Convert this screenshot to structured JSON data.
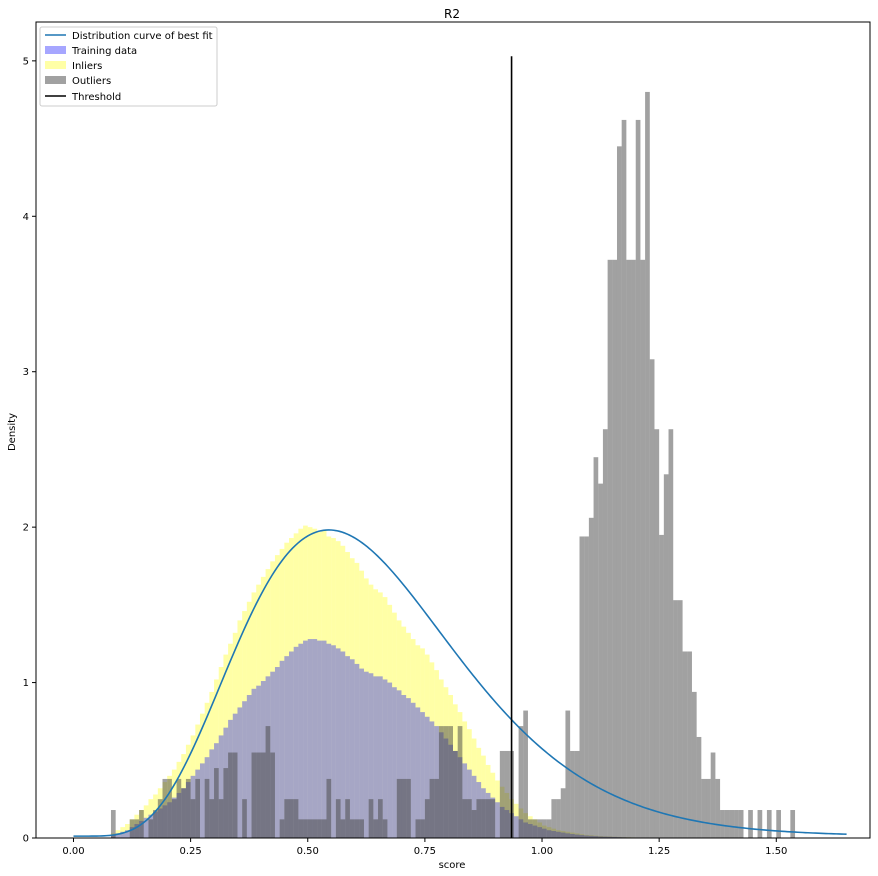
{
  "chart_data": {
    "type": "histogram",
    "title": "R2",
    "xlabel": "score",
    "ylabel": "Density",
    "xlim": [
      -0.08,
      1.7
    ],
    "ylim": [
      0,
      5.25
    ],
    "xticks": [
      0.0,
      0.25,
      0.5,
      0.75,
      1.0,
      1.25,
      1.5
    ],
    "xtick_labels": [
      "0.00",
      "0.25",
      "0.50",
      "0.75",
      "1.00",
      "1.25",
      "1.50"
    ],
    "yticks": [
      0,
      1,
      2,
      3,
      4,
      5
    ],
    "ytick_labels": [
      "0",
      "1",
      "2",
      "3",
      "4",
      "5"
    ],
    "grid": false,
    "legend_position": "top-left",
    "legend": [
      "Distribution curve of best fit",
      "Training data",
      "Inliers",
      "Outliers",
      "Threshold"
    ],
    "colors": {
      "curve": "#1f77b4",
      "training": "#0000ff",
      "inliers": "#ffff00",
      "outliers": "#444444",
      "threshold": "#000000"
    },
    "bin_width": 0.01,
    "inliers_bins": [
      [
        0.08,
        0.03
      ],
      [
        0.09,
        0.05
      ],
      [
        0.1,
        0.07
      ],
      [
        0.11,
        0.09
      ],
      [
        0.12,
        0.12
      ],
      [
        0.13,
        0.15
      ],
      [
        0.14,
        0.18
      ],
      [
        0.15,
        0.21
      ],
      [
        0.16,
        0.25
      ],
      [
        0.17,
        0.28
      ],
      [
        0.18,
        0.32
      ],
      [
        0.19,
        0.36
      ],
      [
        0.2,
        0.4
      ],
      [
        0.21,
        0.44
      ],
      [
        0.22,
        0.49
      ],
      [
        0.23,
        0.54
      ],
      [
        0.24,
        0.6
      ],
      [
        0.25,
        0.66
      ],
      [
        0.26,
        0.73
      ],
      [
        0.27,
        0.8
      ],
      [
        0.28,
        0.87
      ],
      [
        0.29,
        0.94
      ],
      [
        0.3,
        1.02
      ],
      [
        0.31,
        1.1
      ],
      [
        0.32,
        1.18
      ],
      [
        0.33,
        1.25
      ],
      [
        0.34,
        1.32
      ],
      [
        0.35,
        1.4
      ],
      [
        0.36,
        1.46
      ],
      [
        0.37,
        1.52
      ],
      [
        0.38,
        1.58
      ],
      [
        0.39,
        1.63
      ],
      [
        0.4,
        1.68
      ],
      [
        0.41,
        1.73
      ],
      [
        0.42,
        1.78
      ],
      [
        0.43,
        1.82
      ],
      [
        0.44,
        1.86
      ],
      [
        0.45,
        1.9
      ],
      [
        0.46,
        1.93
      ],
      [
        0.47,
        1.96
      ],
      [
        0.48,
        1.99
      ],
      [
        0.49,
        2.01
      ],
      [
        0.5,
        2.0
      ],
      [
        0.51,
        1.99
      ],
      [
        0.52,
        1.97
      ],
      [
        0.53,
        1.98
      ],
      [
        0.54,
        1.94
      ],
      [
        0.55,
        1.93
      ],
      [
        0.56,
        1.91
      ],
      [
        0.57,
        1.88
      ],
      [
        0.58,
        1.84
      ],
      [
        0.59,
        1.8
      ],
      [
        0.6,
        1.77
      ],
      [
        0.61,
        1.72
      ],
      [
        0.62,
        1.67
      ],
      [
        0.63,
        1.63
      ],
      [
        0.64,
        1.6
      ],
      [
        0.65,
        1.58
      ],
      [
        0.66,
        1.55
      ],
      [
        0.67,
        1.5
      ],
      [
        0.68,
        1.45
      ],
      [
        0.69,
        1.4
      ],
      [
        0.7,
        1.36
      ],
      [
        0.71,
        1.32
      ],
      [
        0.72,
        1.28
      ],
      [
        0.73,
        1.24
      ],
      [
        0.74,
        1.22
      ],
      [
        0.75,
        1.18
      ],
      [
        0.76,
        1.13
      ],
      [
        0.77,
        1.08
      ],
      [
        0.78,
        1.02
      ],
      [
        0.79,
        0.97
      ],
      [
        0.8,
        0.92
      ],
      [
        0.81,
        0.86
      ],
      [
        0.82,
        0.81
      ],
      [
        0.83,
        0.75
      ],
      [
        0.84,
        0.7
      ],
      [
        0.85,
        0.64
      ],
      [
        0.86,
        0.58
      ],
      [
        0.87,
        0.53
      ],
      [
        0.88,
        0.47
      ],
      [
        0.89,
        0.42
      ],
      [
        0.9,
        0.37
      ],
      [
        0.91,
        0.33
      ],
      [
        0.92,
        0.29
      ],
      [
        0.93,
        0.25
      ],
      [
        0.94,
        0.22
      ],
      [
        0.95,
        0.19
      ],
      [
        0.96,
        0.16
      ],
      [
        0.97,
        0.14
      ],
      [
        0.98,
        0.12
      ],
      [
        0.99,
        0.1
      ],
      [
        1.0,
        0.08
      ],
      [
        1.01,
        0.07
      ],
      [
        1.02,
        0.06
      ],
      [
        1.03,
        0.05
      ],
      [
        1.04,
        0.045
      ],
      [
        1.05,
        0.04
      ],
      [
        1.06,
        0.035
      ],
      [
        1.07,
        0.03
      ],
      [
        1.08,
        0.025
      ],
      [
        1.09,
        0.02
      ],
      [
        1.1,
        0.018
      ],
      [
        1.11,
        0.015
      ],
      [
        1.12,
        0.013
      ],
      [
        1.13,
        0.011
      ],
      [
        1.14,
        0.01
      ],
      [
        1.15,
        0.008
      ],
      [
        1.16,
        0.007
      ],
      [
        1.17,
        0.006
      ],
      [
        1.18,
        0.005
      ],
      [
        1.19,
        0.004
      ]
    ],
    "training_bins": [
      [
        0.08,
        0.02
      ],
      [
        0.09,
        0.03
      ],
      [
        0.1,
        0.04
      ],
      [
        0.11,
        0.05
      ],
      [
        0.12,
        0.07
      ],
      [
        0.13,
        0.09
      ],
      [
        0.14,
        0.11
      ],
      [
        0.15,
        0.13
      ],
      [
        0.16,
        0.15
      ],
      [
        0.17,
        0.17
      ],
      [
        0.18,
        0.19
      ],
      [
        0.19,
        0.21
      ],
      [
        0.2,
        0.23
      ],
      [
        0.21,
        0.26
      ],
      [
        0.22,
        0.29
      ],
      [
        0.23,
        0.32
      ],
      [
        0.24,
        0.36
      ],
      [
        0.25,
        0.4
      ],
      [
        0.26,
        0.44
      ],
      [
        0.27,
        0.48
      ],
      [
        0.28,
        0.52
      ],
      [
        0.29,
        0.57
      ],
      [
        0.3,
        0.61
      ],
      [
        0.31,
        0.66
      ],
      [
        0.32,
        0.71
      ],
      [
        0.33,
        0.76
      ],
      [
        0.34,
        0.8
      ],
      [
        0.35,
        0.84
      ],
      [
        0.36,
        0.88
      ],
      [
        0.37,
        0.92
      ],
      [
        0.38,
        0.96
      ],
      [
        0.39,
        0.98
      ],
      [
        0.4,
        1.01
      ],
      [
        0.41,
        1.04
      ],
      [
        0.42,
        1.07
      ],
      [
        0.43,
        1.1
      ],
      [
        0.44,
        1.14
      ],
      [
        0.45,
        1.17
      ],
      [
        0.46,
        1.2
      ],
      [
        0.47,
        1.23
      ],
      [
        0.48,
        1.25
      ],
      [
        0.49,
        1.27
      ],
      [
        0.5,
        1.28
      ],
      [
        0.51,
        1.28
      ],
      [
        0.52,
        1.27
      ],
      [
        0.53,
        1.27
      ],
      [
        0.54,
        1.25
      ],
      [
        0.55,
        1.24
      ],
      [
        0.56,
        1.22
      ],
      [
        0.57,
        1.2
      ],
      [
        0.58,
        1.17
      ],
      [
        0.59,
        1.15
      ],
      [
        0.6,
        1.12
      ],
      [
        0.61,
        1.09
      ],
      [
        0.62,
        1.07
      ],
      [
        0.63,
        1.06
      ],
      [
        0.64,
        1.04
      ],
      [
        0.65,
        1.04
      ],
      [
        0.66,
        1.02
      ],
      [
        0.67,
        1.0
      ],
      [
        0.68,
        0.97
      ],
      [
        0.69,
        0.95
      ],
      [
        0.7,
        0.92
      ],
      [
        0.71,
        0.9
      ],
      [
        0.72,
        0.87
      ],
      [
        0.73,
        0.84
      ],
      [
        0.74,
        0.81
      ],
      [
        0.75,
        0.78
      ],
      [
        0.76,
        0.75
      ],
      [
        0.77,
        0.72
      ],
      [
        0.78,
        0.68
      ],
      [
        0.79,
        0.64
      ],
      [
        0.8,
        0.6
      ],
      [
        0.81,
        0.56
      ],
      [
        0.82,
        0.52
      ],
      [
        0.83,
        0.48
      ],
      [
        0.84,
        0.44
      ],
      [
        0.85,
        0.4
      ],
      [
        0.86,
        0.36
      ],
      [
        0.87,
        0.32
      ],
      [
        0.88,
        0.29
      ],
      [
        0.89,
        0.26
      ],
      [
        0.9,
        0.23
      ],
      [
        0.91,
        0.2
      ],
      [
        0.92,
        0.18
      ],
      [
        0.93,
        0.16
      ],
      [
        0.94,
        0.14
      ],
      [
        0.95,
        0.12
      ],
      [
        0.96,
        0.1
      ],
      [
        0.97,
        0.09
      ],
      [
        0.98,
        0.08
      ],
      [
        0.99,
        0.07
      ],
      [
        1.0,
        0.06
      ],
      [
        1.01,
        0.05
      ],
      [
        1.02,
        0.045
      ],
      [
        1.03,
        0.04
      ],
      [
        1.04,
        0.035
      ],
      [
        1.05,
        0.03
      ],
      [
        1.06,
        0.026
      ],
      [
        1.07,
        0.022
      ],
      [
        1.08,
        0.019
      ],
      [
        1.09,
        0.016
      ],
      [
        1.1,
        0.014
      ],
      [
        1.11,
        0.012
      ],
      [
        1.12,
        0.01
      ],
      [
        1.13,
        0.009
      ],
      [
        1.14,
        0.008
      ],
      [
        1.15,
        0.007
      ],
      [
        1.16,
        0.006
      ],
      [
        1.17,
        0.005
      ],
      [
        1.18,
        0.004
      ],
      [
        1.19,
        0.003
      ]
    ],
    "outliers_bins": [
      [
        0.08,
        0.18
      ],
      [
        0.12,
        0.12
      ],
      [
        0.13,
        0.12
      ],
      [
        0.14,
        0.18
      ],
      [
        0.16,
        0.12
      ],
      [
        0.17,
        0.18
      ],
      [
        0.18,
        0.25
      ],
      [
        0.19,
        0.38
      ],
      [
        0.2,
        0.38
      ],
      [
        0.21,
        0.25
      ],
      [
        0.22,
        0.38
      ],
      [
        0.23,
        0.32
      ],
      [
        0.24,
        0.38
      ],
      [
        0.25,
        0.25
      ],
      [
        0.26,
        0.38
      ],
      [
        0.28,
        0.38
      ],
      [
        0.29,
        0.25
      ],
      [
        0.3,
        0.45
      ],
      [
        0.31,
        0.25
      ],
      [
        0.32,
        0.45
      ],
      [
        0.33,
        0.55
      ],
      [
        0.34,
        0.55
      ],
      [
        0.36,
        0.25
      ],
      [
        0.38,
        0.55
      ],
      [
        0.39,
        0.55
      ],
      [
        0.4,
        0.55
      ],
      [
        0.41,
        0.72
      ],
      [
        0.42,
        0.55
      ],
      [
        0.44,
        0.12
      ],
      [
        0.45,
        0.25
      ],
      [
        0.46,
        0.25
      ],
      [
        0.47,
        0.25
      ],
      [
        0.48,
        0.12
      ],
      [
        0.49,
        0.12
      ],
      [
        0.5,
        0.12
      ],
      [
        0.51,
        0.12
      ],
      [
        0.52,
        0.12
      ],
      [
        0.53,
        0.12
      ],
      [
        0.54,
        0.38
      ],
      [
        0.56,
        0.25
      ],
      [
        0.57,
        0.12
      ],
      [
        0.58,
        0.25
      ],
      [
        0.59,
        0.12
      ],
      [
        0.6,
        0.12
      ],
      [
        0.61,
        0.12
      ],
      [
        0.63,
        0.25
      ],
      [
        0.64,
        0.12
      ],
      [
        0.65,
        0.25
      ],
      [
        0.66,
        0.12
      ],
      [
        0.69,
        0.38
      ],
      [
        0.7,
        0.38
      ],
      [
        0.71,
        0.38
      ],
      [
        0.73,
        0.12
      ],
      [
        0.74,
        0.12
      ],
      [
        0.75,
        0.25
      ],
      [
        0.76,
        0.38
      ],
      [
        0.77,
        0.38
      ],
      [
        0.78,
        0.72
      ],
      [
        0.79,
        0.72
      ],
      [
        0.8,
        0.72
      ],
      [
        0.81,
        0.56
      ],
      [
        0.82,
        0.72
      ],
      [
        0.83,
        0.25
      ],
      [
        0.84,
        0.25
      ],
      [
        0.85,
        0.18
      ],
      [
        0.86,
        0.25
      ],
      [
        0.87,
        0.25
      ],
      [
        0.88,
        0.25
      ],
      [
        0.89,
        0.25
      ],
      [
        0.91,
        0.56
      ],
      [
        0.92,
        0.56
      ],
      [
        0.93,
        0.56
      ],
      [
        0.95,
        0.72
      ],
      [
        0.96,
        0.82
      ],
      [
        0.97,
        0.12
      ],
      [
        0.98,
        0.12
      ],
      [
        0.99,
        0.12
      ],
      [
        1.0,
        0.12
      ],
      [
        1.01,
        0.12
      ],
      [
        1.02,
        0.25
      ],
      [
        1.03,
        0.25
      ],
      [
        1.04,
        0.32
      ],
      [
        1.05,
        0.82
      ],
      [
        1.06,
        0.56
      ],
      [
        1.07,
        0.56
      ],
      [
        1.08,
        1.94
      ],
      [
        1.09,
        1.94
      ],
      [
        1.1,
        2.06
      ],
      [
        1.11,
        2.45
      ],
      [
        1.12,
        2.28
      ],
      [
        1.13,
        2.63
      ],
      [
        1.14,
        3.72
      ],
      [
        1.15,
        3.72
      ],
      [
        1.16,
        4.45
      ],
      [
        1.17,
        4.62
      ],
      [
        1.18,
        3.72
      ],
      [
        1.19,
        3.72
      ],
      [
        1.2,
        4.62
      ],
      [
        1.21,
        3.72
      ],
      [
        1.22,
        4.8
      ],
      [
        1.23,
        3.08
      ],
      [
        1.24,
        2.63
      ],
      [
        1.25,
        1.95
      ],
      [
        1.26,
        2.34
      ],
      [
        1.27,
        2.63
      ],
      [
        1.28,
        1.53
      ],
      [
        1.29,
        1.53
      ],
      [
        1.3,
        1.2
      ],
      [
        1.31,
        1.2
      ],
      [
        1.32,
        0.94
      ],
      [
        1.33,
        0.65
      ],
      [
        1.34,
        0.38
      ],
      [
        1.35,
        0.38
      ],
      [
        1.36,
        0.55
      ],
      [
        1.37,
        0.38
      ],
      [
        1.38,
        0.18
      ],
      [
        1.39,
        0.18
      ],
      [
        1.4,
        0.18
      ],
      [
        1.41,
        0.18
      ],
      [
        1.42,
        0.18
      ],
      [
        1.44,
        0.18
      ],
      [
        1.46,
        0.18
      ],
      [
        1.48,
        0.18
      ],
      [
        1.5,
        0.18
      ],
      [
        1.53,
        0.18
      ]
    ],
    "threshold_x": 0.935,
    "threshold_ymax": 5.03,
    "curve": {
      "shape": "lognormal-like fitted density",
      "peak_x": 0.545,
      "peak_y": 1.97,
      "x_start": 0.0,
      "x_end": 1.65
    }
  }
}
